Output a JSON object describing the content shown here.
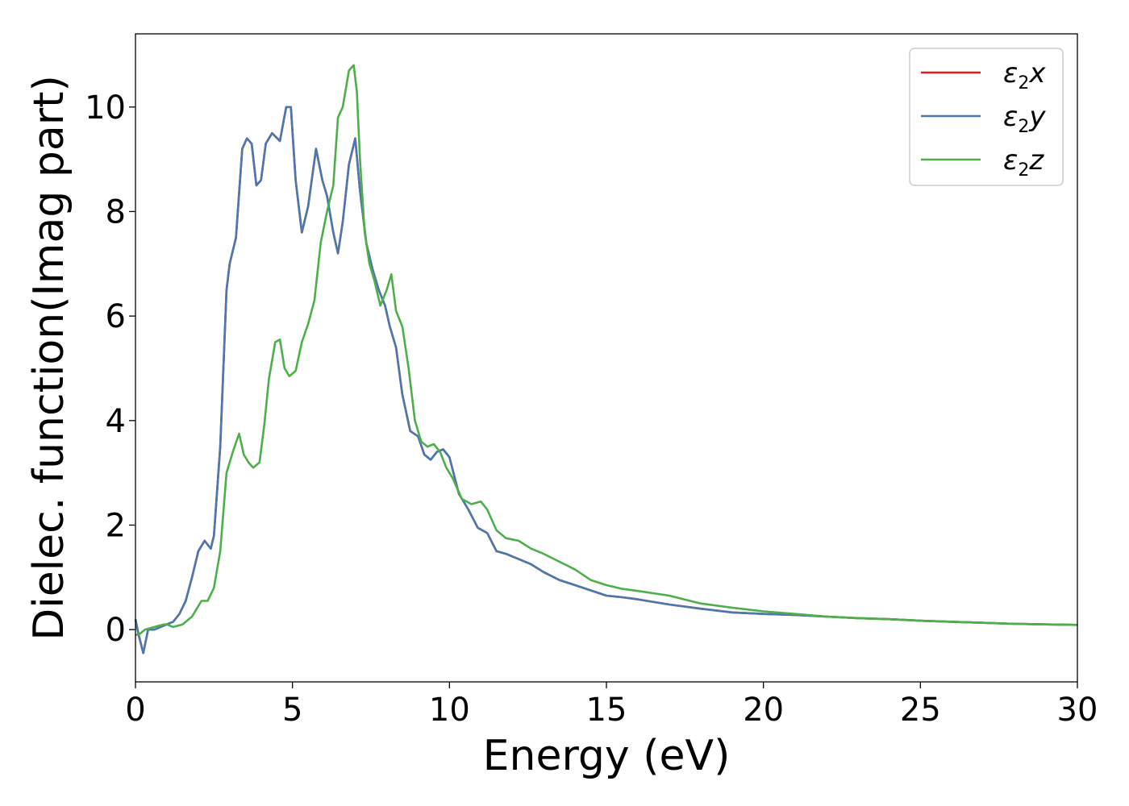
{
  "chart_data": {
    "type": "line",
    "xlabel": "Energy (eV)",
    "ylabel": "Dielec. function(Imag part)",
    "xlim": [
      0,
      30
    ],
    "ylim": [
      -1.0,
      11.4
    ],
    "xticks": [
      0,
      5,
      10,
      15,
      20,
      25,
      30
    ],
    "yticks": [
      0,
      2,
      4,
      6,
      8,
      10
    ],
    "legend_position": "top-right",
    "grid": false,
    "series": [
      {
        "name_main": "ε",
        "name_sub": "2",
        "name_tail": "x",
        "color": "#e41a1c",
        "x": [
          0,
          0.1,
          0.25,
          0.4,
          0.6,
          0.8,
          1.0,
          1.2,
          1.4,
          1.6,
          1.8,
          2.0,
          2.2,
          2.4,
          2.5,
          2.7,
          2.9,
          3.0,
          3.2,
          3.4,
          3.55,
          3.7,
          3.85,
          4.0,
          4.15,
          4.35,
          4.6,
          4.8,
          4.95,
          5.1,
          5.3,
          5.5,
          5.75,
          5.95,
          6.1,
          6.3,
          6.45,
          6.6,
          6.8,
          7.0,
          7.15,
          7.35,
          7.55,
          7.75,
          7.95,
          8.1,
          8.3,
          8.5,
          8.75,
          9.0,
          9.2,
          9.4,
          9.6,
          9.8,
          10.0,
          10.3,
          10.6,
          10.9,
          11.2,
          11.5,
          11.8,
          12.2,
          12.6,
          13.0,
          13.5,
          14.0,
          14.5,
          15.0,
          15.5,
          16.0,
          17.0,
          18.0,
          19.0,
          20.0,
          21.0,
          22.0,
          23.0,
          24.0,
          25.0,
          26.0,
          27.0,
          28.0,
          29.0,
          30.0
        ],
        "values": [
          0.2,
          -0.1,
          -0.45,
          0.0,
          0.0,
          0.05,
          0.1,
          0.15,
          0.3,
          0.55,
          1.0,
          1.5,
          1.7,
          1.55,
          1.8,
          3.5,
          6.5,
          7.0,
          7.5,
          9.2,
          9.4,
          9.3,
          8.5,
          8.6,
          9.3,
          9.5,
          9.35,
          10.0,
          10.0,
          8.6,
          7.6,
          8.1,
          9.2,
          8.6,
          8.3,
          7.6,
          7.2,
          7.8,
          8.9,
          9.4,
          8.4,
          7.4,
          6.9,
          6.5,
          6.2,
          5.8,
          5.4,
          4.5,
          3.8,
          3.7,
          3.35,
          3.25,
          3.4,
          3.45,
          3.3,
          2.6,
          2.3,
          1.95,
          1.85,
          1.5,
          1.45,
          1.35,
          1.25,
          1.1,
          0.95,
          0.85,
          0.75,
          0.65,
          0.62,
          0.58,
          0.48,
          0.4,
          0.33,
          0.3,
          0.28,
          0.25,
          0.22,
          0.2,
          0.17,
          0.15,
          0.13,
          0.11,
          0.1,
          0.09
        ]
      },
      {
        "name_main": "ε",
        "name_sub": "2",
        "name_tail": "y",
        "color": "#4a78b0",
        "x": [
          0,
          0.1,
          0.25,
          0.4,
          0.6,
          0.8,
          1.0,
          1.2,
          1.4,
          1.6,
          1.8,
          2.0,
          2.2,
          2.4,
          2.5,
          2.7,
          2.9,
          3.0,
          3.2,
          3.4,
          3.55,
          3.7,
          3.85,
          4.0,
          4.15,
          4.35,
          4.6,
          4.8,
          4.95,
          5.1,
          5.3,
          5.5,
          5.75,
          5.95,
          6.1,
          6.3,
          6.45,
          6.6,
          6.8,
          7.0,
          7.15,
          7.35,
          7.55,
          7.75,
          7.95,
          8.1,
          8.3,
          8.5,
          8.75,
          9.0,
          9.2,
          9.4,
          9.6,
          9.8,
          10.0,
          10.3,
          10.6,
          10.9,
          11.2,
          11.5,
          11.8,
          12.2,
          12.6,
          13.0,
          13.5,
          14.0,
          14.5,
          15.0,
          15.5,
          16.0,
          17.0,
          18.0,
          19.0,
          20.0,
          21.0,
          22.0,
          23.0,
          24.0,
          25.0,
          26.0,
          27.0,
          28.0,
          29.0,
          30.0
        ],
        "values": [
          0.2,
          -0.1,
          -0.45,
          0.0,
          0.0,
          0.05,
          0.1,
          0.15,
          0.3,
          0.55,
          1.0,
          1.5,
          1.7,
          1.55,
          1.8,
          3.5,
          6.5,
          7.0,
          7.5,
          9.2,
          9.4,
          9.3,
          8.5,
          8.6,
          9.3,
          9.5,
          9.35,
          10.0,
          10.0,
          8.6,
          7.6,
          8.1,
          9.2,
          8.6,
          8.3,
          7.6,
          7.2,
          7.8,
          8.9,
          9.4,
          8.4,
          7.4,
          6.9,
          6.5,
          6.2,
          5.8,
          5.4,
          4.5,
          3.8,
          3.7,
          3.35,
          3.25,
          3.4,
          3.45,
          3.3,
          2.6,
          2.3,
          1.95,
          1.85,
          1.5,
          1.45,
          1.35,
          1.25,
          1.1,
          0.95,
          0.85,
          0.75,
          0.65,
          0.62,
          0.58,
          0.48,
          0.4,
          0.33,
          0.3,
          0.28,
          0.25,
          0.22,
          0.2,
          0.17,
          0.15,
          0.13,
          0.11,
          0.1,
          0.09
        ]
      },
      {
        "name_main": "ε",
        "name_sub": "2",
        "name_tail": "z",
        "color": "#4daf4a",
        "x": [
          0,
          0.1,
          0.3,
          0.6,
          0.9,
          1.0,
          1.2,
          1.5,
          1.8,
          2.1,
          2.3,
          2.5,
          2.7,
          2.9,
          3.1,
          3.3,
          3.45,
          3.6,
          3.75,
          3.95,
          4.1,
          4.25,
          4.45,
          4.6,
          4.75,
          4.9,
          5.1,
          5.3,
          5.5,
          5.7,
          5.9,
          6.1,
          6.3,
          6.45,
          6.6,
          6.8,
          6.95,
          7.05,
          7.15,
          7.3,
          7.45,
          7.6,
          7.8,
          8.0,
          8.15,
          8.3,
          8.5,
          8.7,
          8.9,
          9.1,
          9.3,
          9.5,
          9.7,
          9.9,
          10.1,
          10.4,
          10.7,
          11.0,
          11.2,
          11.5,
          11.8,
          12.2,
          12.6,
          13.0,
          13.5,
          14.0,
          14.5,
          15.0,
          15.5,
          16.0,
          17.0,
          18.0,
          19.0,
          20.0,
          21.0,
          22.0,
          23.0,
          24.0,
          25.0,
          26.0,
          27.0,
          28.0,
          29.0,
          30.0
        ],
        "values": [
          -0.1,
          -0.1,
          0.0,
          0.05,
          0.1,
          0.1,
          0.05,
          0.1,
          0.25,
          0.55,
          0.55,
          0.8,
          1.5,
          3.0,
          3.4,
          3.75,
          3.35,
          3.2,
          3.1,
          3.2,
          3.9,
          4.8,
          5.5,
          5.55,
          5.0,
          4.85,
          4.95,
          5.5,
          5.85,
          6.3,
          7.4,
          8.0,
          8.5,
          9.8,
          10.0,
          10.7,
          10.8,
          10.3,
          9.0,
          7.6,
          7.0,
          6.7,
          6.2,
          6.5,
          6.8,
          6.1,
          5.8,
          5.0,
          4.0,
          3.6,
          3.5,
          3.55,
          3.4,
          3.1,
          2.9,
          2.5,
          2.4,
          2.45,
          2.3,
          1.9,
          1.75,
          1.7,
          1.55,
          1.45,
          1.3,
          1.15,
          0.95,
          0.85,
          0.78,
          0.74,
          0.65,
          0.5,
          0.42,
          0.35,
          0.3,
          0.25,
          0.22,
          0.2,
          0.17,
          0.15,
          0.13,
          0.11,
          0.1,
          0.09
        ]
      }
    ]
  }
}
